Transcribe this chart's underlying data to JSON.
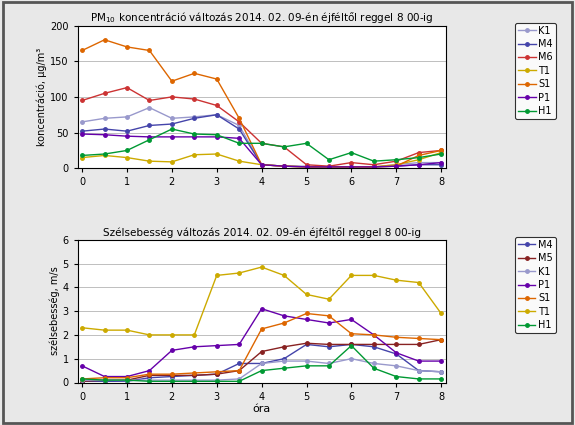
{
  "title1": "PM$_{10}$ koncentráció változás 2014. 02. 09-én éjféltől reggel 8 00-ig",
  "title2": "Szélsebesség változás 2014. 02. 09-én éjféltől reggel 8 00-ig",
  "xlabel": "óra",
  "ylabel1": "koncentráció, μg/m³",
  "ylabel2": "szélsebesség, m/s",
  "x": [
    0,
    0.5,
    1,
    1.5,
    2,
    2.5,
    3,
    3.5,
    4,
    4.5,
    5,
    5.5,
    6,
    6.5,
    7,
    7.5,
    8
  ],
  "pm10": {
    "K1": [
      65,
      70,
      72,
      85,
      70,
      72,
      75,
      60,
      5,
      3,
      3,
      2,
      2,
      2,
      5,
      8,
      8
    ],
    "M4": [
      52,
      55,
      52,
      60,
      62,
      70,
      75,
      55,
      5,
      3,
      2,
      2,
      2,
      2,
      3,
      5,
      5
    ],
    "M6": [
      95,
      105,
      113,
      95,
      100,
      97,
      88,
      65,
      35,
      30,
      5,
      3,
      8,
      5,
      10,
      22,
      25
    ],
    "T1": [
      15,
      18,
      15,
      10,
      9,
      19,
      20,
      10,
      5,
      3,
      2,
      2,
      2,
      2,
      5,
      12,
      22
    ],
    "S1": [
      165,
      180,
      170,
      165,
      122,
      133,
      125,
      70,
      5,
      3,
      2,
      2,
      2,
      2,
      3,
      18,
      25
    ],
    "P1": [
      48,
      47,
      45,
      44,
      44,
      44,
      44,
      42,
      5,
      3,
      2,
      2,
      2,
      2,
      3,
      5,
      8
    ],
    "H1": [
      18,
      20,
      25,
      40,
      55,
      48,
      47,
      35,
      35,
      30,
      35,
      12,
      22,
      10,
      12,
      15,
      20
    ]
  },
  "wind": {
    "M4": [
      0.05,
      0.05,
      0.05,
      0.2,
      0.25,
      0.3,
      0.35,
      0.8,
      0.8,
      1.0,
      1.6,
      1.5,
      1.6,
      1.5,
      1.2,
      0.5,
      0.45
    ],
    "M5": [
      0.05,
      0.1,
      0.1,
      0.3,
      0.3,
      0.3,
      0.35,
      0.5,
      1.3,
      1.5,
      1.65,
      1.6,
      1.6,
      1.6,
      1.6,
      1.6,
      1.8
    ],
    "K1": [
      0.1,
      0.1,
      0.08,
      0.1,
      0.1,
      0.1,
      0.1,
      0.15,
      0.8,
      0.9,
      0.9,
      0.8,
      1.0,
      0.8,
      0.7,
      0.5,
      0.45
    ],
    "P1": [
      0.7,
      0.25,
      0.25,
      0.5,
      1.35,
      1.5,
      1.55,
      1.6,
      3.1,
      2.8,
      2.65,
      2.5,
      2.65,
      2.0,
      1.25,
      0.9,
      0.9
    ],
    "S1": [
      0.15,
      0.2,
      0.2,
      0.35,
      0.35,
      0.4,
      0.45,
      0.5,
      2.25,
      2.5,
      2.9,
      2.8,
      2.05,
      2.0,
      1.9,
      1.85,
      1.8
    ],
    "T1": [
      2.3,
      2.2,
      2.2,
      2.0,
      2.0,
      2.0,
      4.5,
      4.6,
      4.85,
      4.5,
      3.7,
      3.5,
      4.5,
      4.5,
      4.3,
      4.2,
      2.9
    ],
    "H1": [
      0.15,
      0.1,
      0.1,
      0.05,
      0.05,
      0.05,
      0.05,
      0.05,
      0.5,
      0.6,
      0.7,
      0.7,
      1.55,
      0.6,
      0.25,
      0.15,
      0.15
    ]
  },
  "pm10_colors": {
    "K1": "#9999cc",
    "M4": "#4444aa",
    "M6": "#cc3333",
    "T1": "#ccaa00",
    "S1": "#dd6600",
    "P1": "#6600aa",
    "H1": "#009933"
  },
  "wind_colors": {
    "M4": "#4444aa",
    "M5": "#882222",
    "K1": "#9999cc",
    "P1": "#6600aa",
    "S1": "#dd6600",
    "T1": "#ccaa00",
    "H1": "#009933"
  },
  "ylim1": [
    0,
    200
  ],
  "ylim2": [
    0,
    6
  ],
  "yticks1": [
    0,
    50,
    100,
    150,
    200
  ],
  "yticks2": [
    0,
    1,
    2,
    3,
    4,
    5,
    6
  ],
  "xticks": [
    0,
    1,
    2,
    3,
    4,
    5,
    6,
    7,
    8
  ],
  "border_color": "#555555",
  "bg_color": "#e8e8e8"
}
